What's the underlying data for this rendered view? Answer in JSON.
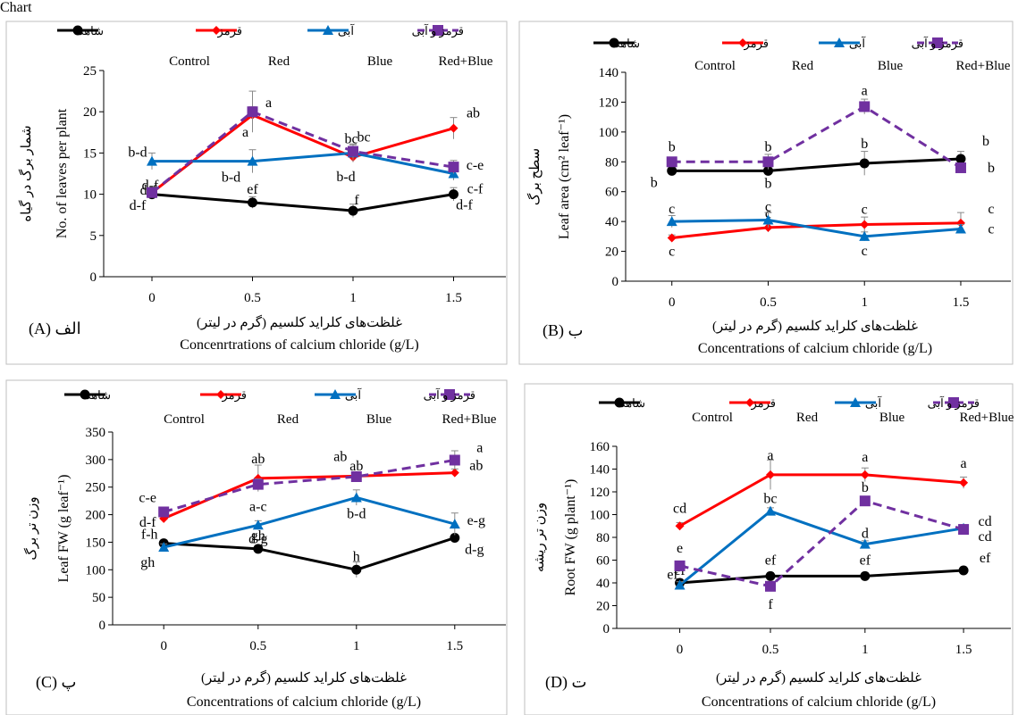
{
  "legend_fa": [
    "شاهد",
    "قرمز",
    "آبی",
    "قرمز و آبی"
  ],
  "legend_en": [
    "Control",
    "Red",
    "Blue",
    "Red+Blue"
  ],
  "xlabel_fa": "غلظت‌های کلراید کلسیم (گرم در لیتر)",
  "colors": {
    "control": "#000000",
    "red": "#ff0000",
    "blue": "#0070c0",
    "redblue": "#7030a0"
  },
  "chart_data": [
    {
      "type": "line",
      "panel_label": "(A) الف",
      "ylabel_fa": "شمار برگ در گیاه",
      "ylabel_en": "No. of leaves per plant",
      "xlabel_en": "Concenrtrations of calcium chloride (g/L)",
      "x": [
        "0",
        "0.5",
        "1",
        "1.5"
      ],
      "ylim": [
        0,
        25
      ],
      "yticks": [
        0,
        5,
        10,
        15,
        20,
        25
      ],
      "series": [
        {
          "name": "Control",
          "values": [
            10,
            9,
            8,
            10
          ],
          "errors": [
            0.6,
            0.7,
            0.8,
            0.8
          ],
          "labels": [
            "d-f",
            "ef",
            "f",
            "d-f"
          ]
        },
        {
          "name": "Red",
          "values": [
            10.2,
            19.6,
            14.5,
            18
          ],
          "errors": [
            0.5,
            1.0,
            0.6,
            1.3
          ],
          "labels": [
            "d-f",
            "a",
            "b-d",
            "ab"
          ]
        },
        {
          "name": "Blue",
          "values": [
            14,
            14,
            15,
            12.5
          ],
          "errors": [
            1.0,
            1.4,
            1.0,
            0.8
          ],
          "labels": [
            "b-d",
            "b-d",
            "bc",
            "c-f"
          ]
        },
        {
          "name": "Red+Blue",
          "values": [
            10.2,
            20,
            15.2,
            13.3
          ],
          "errors": [
            0.6,
            2.5,
            0.9,
            0.8
          ],
          "labels": [
            "d-f",
            "a",
            "bc",
            "c-e"
          ]
        }
      ]
    },
    {
      "type": "line",
      "panel_label": "(B) ب",
      "ylabel_fa": "سطح برگ",
      "ylabel_en": "Leaf area (cm² leaf⁻¹)",
      "xlabel_en": "Concentrations of calcium chloride (g/L)",
      "x": [
        "0",
        "0.5",
        "1",
        "1.5"
      ],
      "ylim": [
        0,
        140
      ],
      "yticks": [
        0,
        20,
        40,
        60,
        80,
        100,
        120,
        140
      ],
      "series": [
        {
          "name": "Control",
          "values": [
            74,
            74,
            79,
            82
          ],
          "errors": [
            2,
            2,
            8,
            5
          ],
          "labels": [
            "b",
            "b",
            "b",
            "b"
          ]
        },
        {
          "name": "Red",
          "values": [
            29,
            36,
            38,
            39
          ],
          "errors": [
            2,
            3,
            5,
            7
          ],
          "labels": [
            "c",
            "c",
            "c",
            "c"
          ]
        },
        {
          "name": "Blue",
          "values": [
            40,
            41,
            30,
            35
          ],
          "errors": [
            4,
            5,
            3,
            3
          ],
          "labels": [
            "c",
            "c",
            "c",
            "c"
          ]
        },
        {
          "name": "Red+Blue",
          "values": [
            80,
            80,
            117,
            76
          ],
          "errors": [
            2,
            5,
            5,
            3
          ],
          "labels": [
            "b",
            "b",
            "a",
            "b"
          ]
        }
      ]
    },
    {
      "type": "line",
      "panel_label": "(C) پ",
      "ylabel_fa": "وزن تر برگ",
      "ylabel_en": "Leaf FW (g leaf⁻¹)",
      "xlabel_en": "Concentrations of calcium chloride (g/L)",
      "x": [
        "0",
        "0.5",
        "1",
        "1.5"
      ],
      "ylim": [
        0,
        350
      ],
      "yticks": [
        0,
        50,
        100,
        150,
        200,
        250,
        300,
        350
      ],
      "series": [
        {
          "name": "Control",
          "values": [
            148,
            138,
            100,
            158
          ],
          "errors": [
            6,
            6,
            14,
            6
          ],
          "labels": [
            "f-h",
            "gh",
            "h",
            "d-g"
          ]
        },
        {
          "name": "Red",
          "values": [
            193,
            266,
            270,
            276
          ],
          "errors": [
            7,
            24,
            8,
            7
          ],
          "labels": [
            "d-f",
            "ab",
            "ab",
            "ab"
          ]
        },
        {
          "name": "Blue",
          "values": [
            141,
            181,
            231,
            183
          ],
          "errors": [
            6,
            8,
            14,
            20
          ],
          "labels": [
            "gh",
            "d-g",
            "b-d",
            "e-g"
          ]
        },
        {
          "name": "Red+Blue",
          "values": [
            205,
            255,
            269,
            299
          ],
          "errors": [
            7,
            10,
            8,
            17
          ],
          "labels": [
            "c-e",
            "a-c",
            "ab",
            "a"
          ]
        }
      ]
    },
    {
      "type": "line",
      "panel_label": "(D) ت",
      "ylabel_fa": "وزن تر ریشه",
      "ylabel_en": "Root FW (g plant⁻¹)",
      "xlabel_en": "Concentrations of calcium chloride (g/L)",
      "x": [
        "0",
        "0.5",
        "1",
        "1.5"
      ],
      "ylim": [
        0,
        160
      ],
      "yticks": [
        0,
        20,
        40,
        60,
        80,
        100,
        120,
        140,
        160
      ],
      "series": [
        {
          "name": "Control",
          "values": [
            40,
            46,
            46,
            51
          ],
          "errors": [
            3,
            3,
            3,
            3
          ],
          "labels": [
            "ef",
            "ef",
            "ef",
            "ef"
          ]
        },
        {
          "name": "Red",
          "values": [
            90,
            135,
            135,
            128
          ],
          "errors": [
            3,
            13,
            6,
            5
          ],
          "labels": [
            "cd",
            "a",
            "a",
            "a"
          ]
        },
        {
          "name": "Blue",
          "values": [
            38,
            103,
            74,
            88
          ],
          "errors": [
            3,
            3,
            3,
            3
          ],
          "labels": [
            "ef",
            "bc",
            "d",
            "cd"
          ]
        },
        {
          "name": "Red+Blue",
          "values": [
            55,
            37,
            112,
            87
          ],
          "errors": [
            3,
            3,
            4,
            3
          ],
          "labels": [
            "e",
            "f",
            "b",
            "cd"
          ]
        }
      ]
    }
  ]
}
